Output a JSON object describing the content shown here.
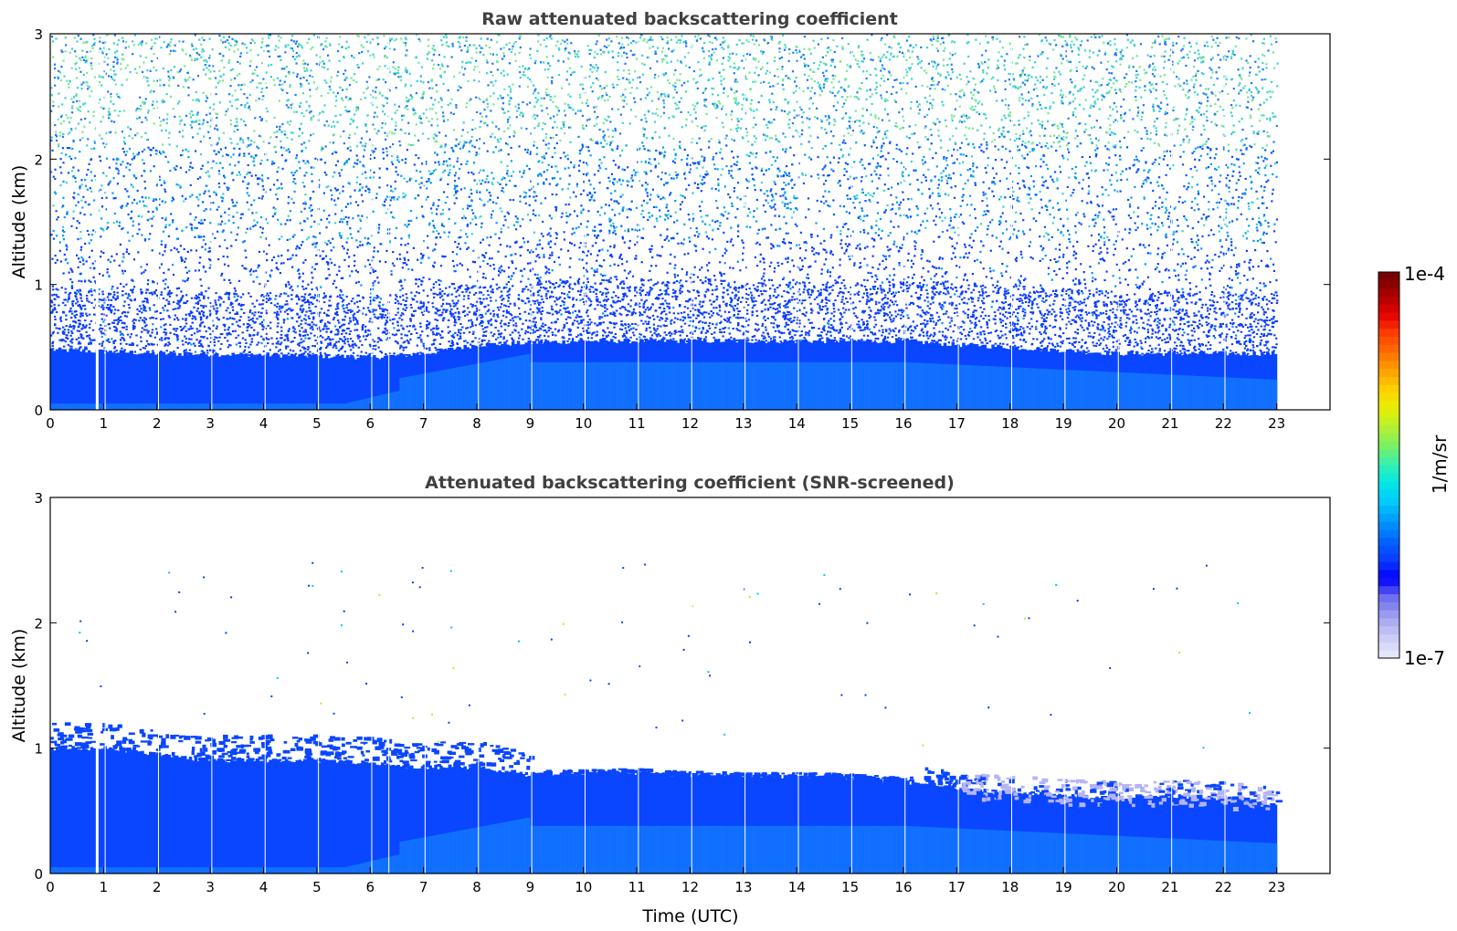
{
  "chart_data": [
    {
      "type": "heatmap",
      "title": "Raw attenuated backscattering coefficient",
      "ylabel": "Altitude (km)",
      "xlabel": "",
      "xlim": [
        0,
        24
      ],
      "ylim": [
        0,
        3
      ],
      "x_data_extent": [
        0,
        23
      ],
      "xticks": [
        "0",
        "1",
        "2",
        "3",
        "4",
        "5",
        "6",
        "7",
        "8",
        "9",
        "10",
        "11",
        "12",
        "13",
        "14",
        "15",
        "16",
        "17",
        "18",
        "19",
        "20",
        "21",
        "22",
        "23"
      ],
      "yticks": [
        "0",
        "1",
        "2",
        "3"
      ],
      "layer_top_km": [
        [
          0,
          0.48
        ],
        [
          2,
          0.45
        ],
        [
          4,
          0.44
        ],
        [
          6,
          0.42
        ],
        [
          7,
          0.45
        ],
        [
          8,
          0.52
        ],
        [
          10,
          0.55
        ],
        [
          12,
          0.55
        ],
        [
          14,
          0.55
        ],
        [
          16,
          0.55
        ],
        [
          17,
          0.52
        ],
        [
          18,
          0.5
        ],
        [
          20,
          0.45
        ],
        [
          22,
          0.45
        ],
        [
          23,
          0.45
        ]
      ],
      "noise_description_levels": {
        "near_surface": "blue",
        "aloft": "cyan-green speckle"
      },
      "grid": false
    },
    {
      "type": "heatmap",
      "title": "Attenuated backscattering coefficient (SNR-screened)",
      "ylabel": "Altitude (km)",
      "xlabel": "Time (UTC)",
      "xlim": [
        0,
        24
      ],
      "ylim": [
        0,
        3
      ],
      "x_data_extent": [
        0,
        23
      ],
      "xticks": [
        "0",
        "1",
        "2",
        "3",
        "4",
        "5",
        "6",
        "7",
        "8",
        "9",
        "10",
        "11",
        "12",
        "13",
        "14",
        "15",
        "16",
        "17",
        "18",
        "19",
        "20",
        "21",
        "22",
        "23"
      ],
      "yticks": [
        "0",
        "1",
        "2",
        "3"
      ],
      "layer_top_km": [
        [
          0,
          1.0
        ],
        [
          1,
          1.0
        ],
        [
          2,
          0.95
        ],
        [
          3,
          0.9
        ],
        [
          4,
          0.9
        ],
        [
          5,
          0.9
        ],
        [
          6,
          0.88
        ],
        [
          7,
          0.85
        ],
        [
          8,
          0.85
        ],
        [
          9,
          0.78
        ],
        [
          10,
          0.8
        ],
        [
          11,
          0.8
        ],
        [
          12,
          0.78
        ],
        [
          13,
          0.77
        ],
        [
          14,
          0.77
        ],
        [
          15,
          0.76
        ],
        [
          16,
          0.73
        ],
        [
          17,
          0.68
        ],
        [
          18,
          0.65
        ],
        [
          19,
          0.62
        ],
        [
          20,
          0.6
        ],
        [
          21,
          0.62
        ],
        [
          22,
          0.6
        ],
        [
          23,
          0.55
        ]
      ],
      "grid": false
    }
  ],
  "colorbar": {
    "max_label": "1e-4",
    "min_label": "1e-7",
    "unit_label": "1/m/sr",
    "colors": [
      "#e6e6fa",
      "#c8c8f5",
      "#a0a0f0",
      "#6e6ef0",
      "#0000ff",
      "#0a3cff",
      "#0064ff",
      "#0096ff",
      "#00c8ff",
      "#00e6e6",
      "#32f0b4",
      "#78f064",
      "#b4f032",
      "#e6f000",
      "#ffd200",
      "#ffa000",
      "#ff6e00",
      "#ff3c00",
      "#e60000",
      "#aa0000",
      "#780000"
    ]
  },
  "colors": {
    "surface_dark": "#0033ff",
    "layer_blue": "#0a46ff",
    "lower_light": "#1478ff",
    "speckle_cyan": "#3cd2d2",
    "speckle_green": "#78e696"
  }
}
